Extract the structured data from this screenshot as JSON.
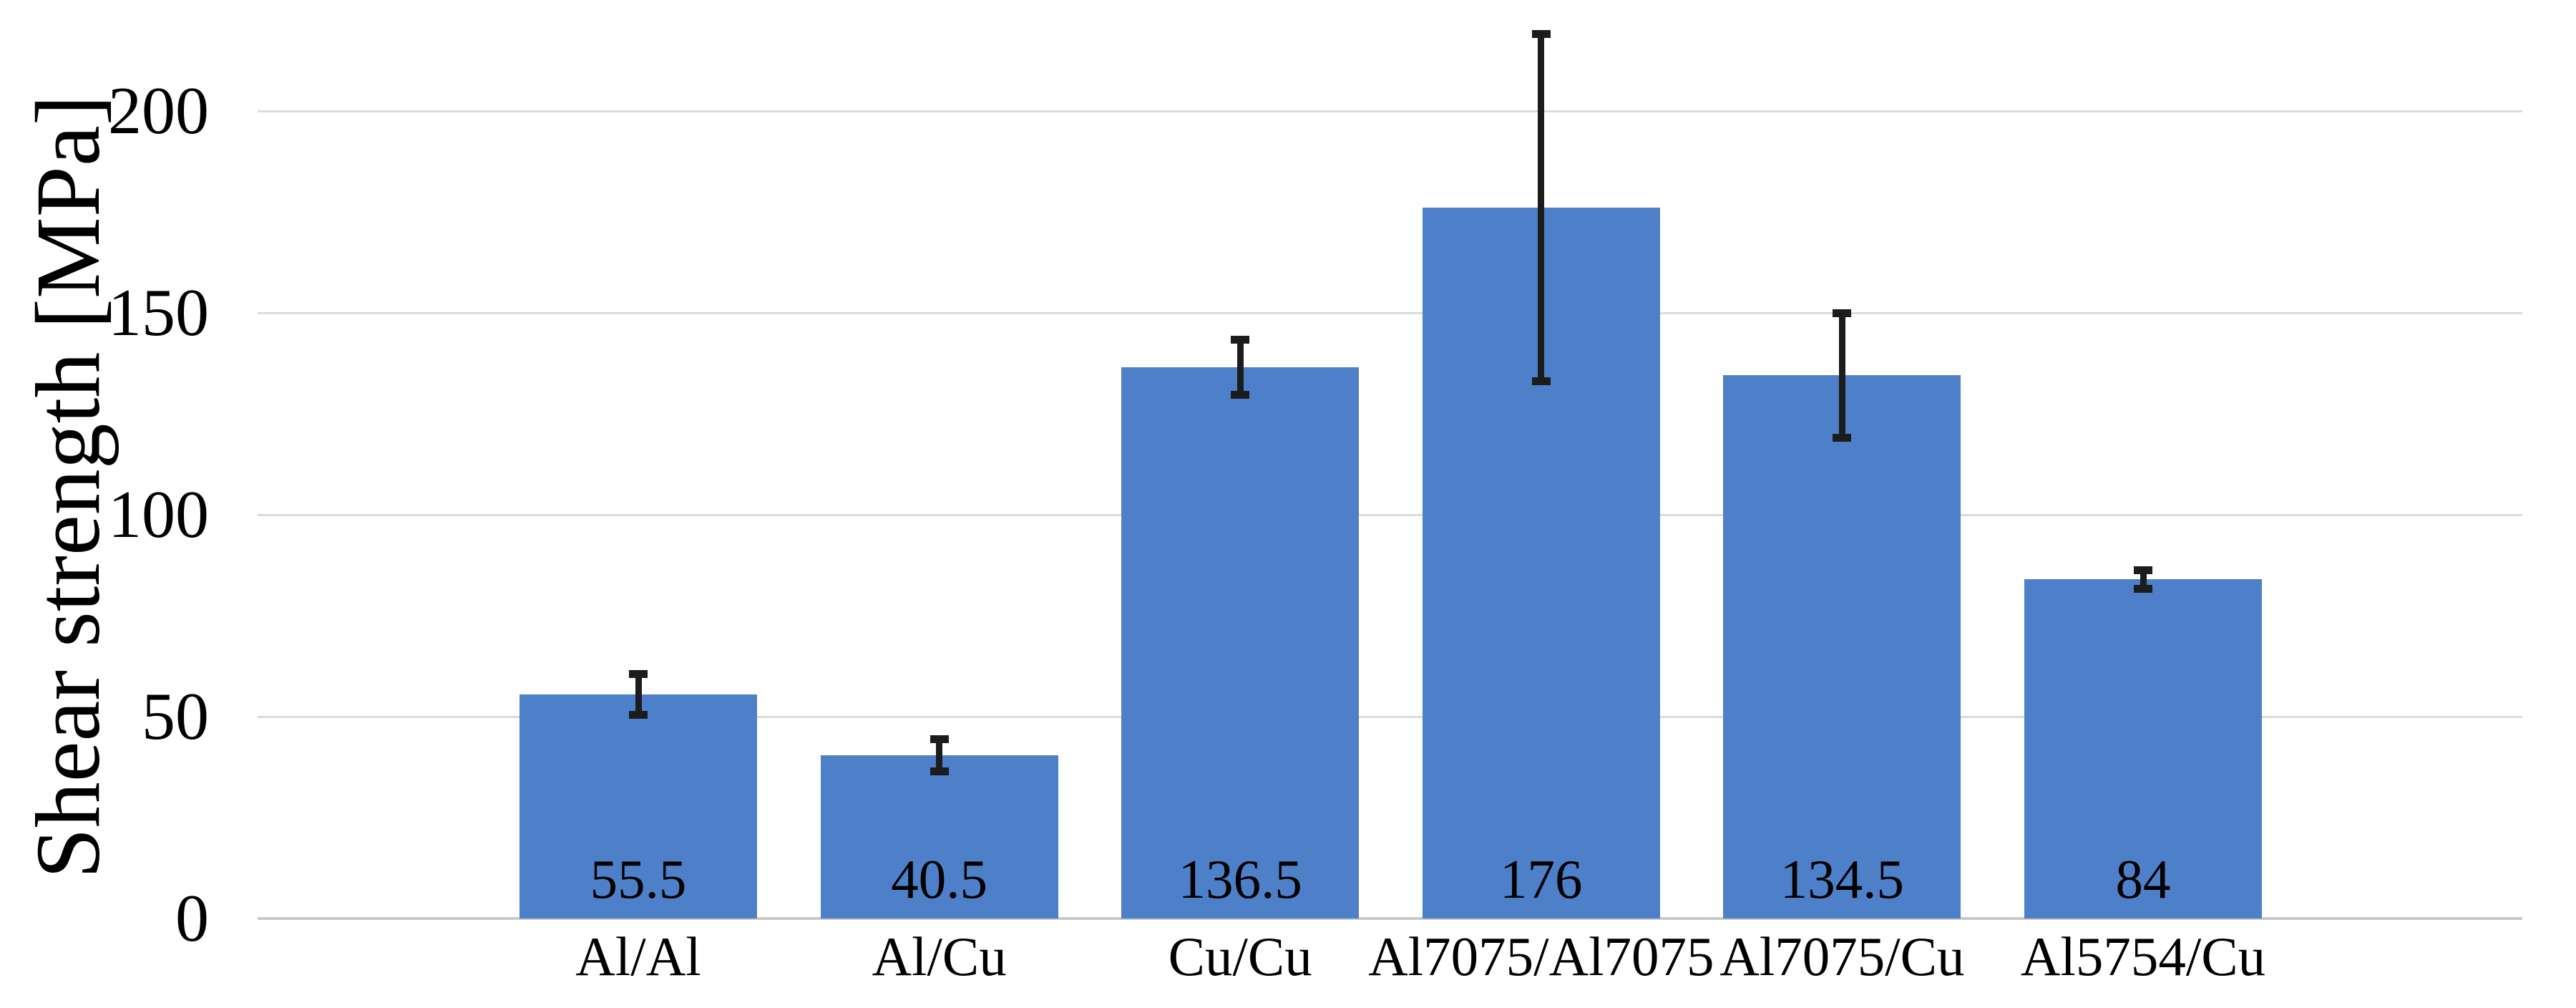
{
  "chart_data": {
    "type": "bar",
    "title": "",
    "xlabel": "",
    "ylabel": "Shear strength [MPa]",
    "categories": [
      "Al/Al",
      "Al/Cu",
      "Cu/Cu",
      "Al7075/Al7075",
      "Al7075/Cu",
      "Al5754/Cu"
    ],
    "values": [
      55.5,
      40.5,
      136.5,
      176,
      134.5,
      84
    ],
    "data_labels": [
      "55.5",
      "40.5",
      "136.5",
      "176",
      "134.5",
      "84"
    ],
    "error_bars_plus_minus": [
      5,
      4,
      6.8,
      43,
      15.5,
      2.3
    ],
    "ylim": [
      0,
      200
    ],
    "yticks": [
      "0",
      "50",
      "100",
      "150",
      "200"
    ],
    "grid": "horizontal",
    "legend": "none",
    "colors": {
      "bar": "#4d80c8",
      "error_bar": "#1c1c1c",
      "gridline": "#dcdcdc",
      "axis_line": "#c9c9c9",
      "text": "#000000",
      "background": "#ffffff"
    }
  }
}
